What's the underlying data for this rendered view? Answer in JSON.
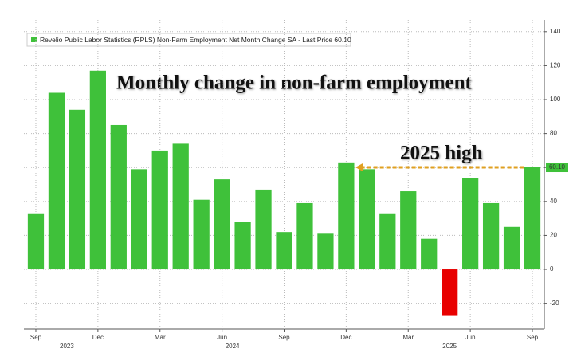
{
  "chart_data": {
    "type": "bar",
    "title": "Revelio Public Labor Statistics (RPLS) Non-Farm Employment Net Month Change SA - Last Price 60.10",
    "heading": "Monthly change in non-farm employment",
    "annotation": "2025 high",
    "categories": [
      "Sep",
      null,
      null,
      "Dec",
      null,
      null,
      "Mar",
      null,
      null,
      "Jun",
      null,
      null,
      "Sep",
      null,
      null,
      "Dec",
      null,
      null,
      "Mar",
      null,
      null,
      "Jun",
      null,
      null,
      "Sep"
    ],
    "year_groups": [
      {
        "label": "2023",
        "span": [
          0,
          3
        ]
      },
      {
        "label": "2024",
        "span": [
          4,
          15
        ]
      },
      {
        "label": "2025",
        "span": [
          16,
          24
        ]
      }
    ],
    "values": [
      33,
      104,
      94,
      117,
      85,
      59,
      70,
      74,
      41,
      53,
      28,
      47,
      22,
      39,
      21,
      63,
      59,
      33,
      46,
      18,
      -27,
      54,
      39,
      25,
      60.1
    ],
    "color": "#3fc13a",
    "negative_color": "#e80000",
    "last_price": {
      "value": 60.1,
      "label": "60.10"
    },
    "annotation_color": "#e0a020",
    "ylim": [
      -35,
      150
    ],
    "yticks": [
      -20,
      0,
      20,
      40,
      60,
      80,
      100,
      120,
      140
    ],
    "grid": true
  }
}
